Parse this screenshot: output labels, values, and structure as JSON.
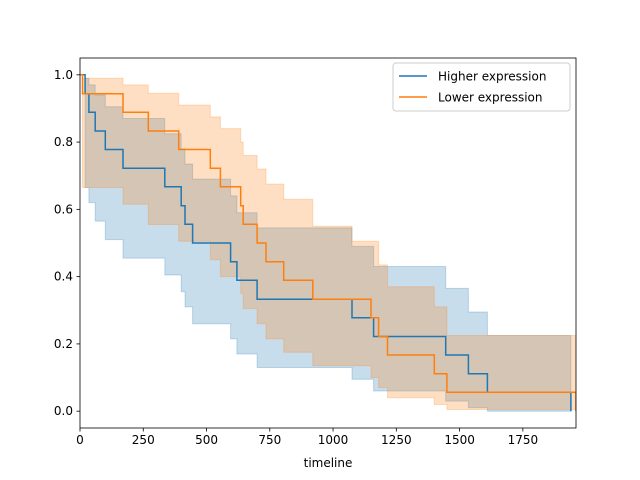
{
  "chart_data": {
    "type": "line",
    "subtype": "kaplan-meier-step",
    "title": "",
    "xlabel": "timeline",
    "ylabel": "",
    "xlim": [
      0,
      1960
    ],
    "ylim": [
      -0.05,
      1.05
    ],
    "xticks": [
      0,
      250,
      500,
      750,
      1000,
      1250,
      1500,
      1750
    ],
    "yticks": [
      0.0,
      0.2,
      0.4,
      0.6,
      0.8,
      1.0
    ],
    "xtick_labels": [
      "0",
      "250",
      "500",
      "750",
      "1000",
      "1250",
      "1500",
      "1750"
    ],
    "ytick_labels": [
      "0.0",
      "0.2",
      "0.4",
      "0.6",
      "0.8",
      "1.0"
    ],
    "legend_position": "top-right",
    "grid": false,
    "series": [
      {
        "name": "Higher expression",
        "color": "#1f77b4",
        "band_color": "#1f77b4",
        "steps": [
          [
            0,
            1.0
          ],
          [
            20,
            0.944
          ],
          [
            35,
            0.889
          ],
          [
            60,
            0.833
          ],
          [
            100,
            0.778
          ],
          [
            170,
            0.722
          ],
          [
            335,
            0.667
          ],
          [
            400,
            0.611
          ],
          [
            415,
            0.556
          ],
          [
            445,
            0.5
          ],
          [
            595,
            0.444
          ],
          [
            620,
            0.389
          ],
          [
            700,
            0.333
          ],
          [
            1075,
            0.278
          ],
          [
            1160,
            0.222
          ],
          [
            1445,
            0.167
          ],
          [
            1535,
            0.111
          ],
          [
            1610,
            0.056
          ],
          [
            1940,
            0.0
          ]
        ],
        "upper": [
          [
            0,
            1.0
          ],
          [
            20,
            0.99
          ],
          [
            35,
            0.97
          ],
          [
            60,
            0.94
          ],
          [
            100,
            0.905
          ],
          [
            170,
            0.87
          ],
          [
            335,
            0.825
          ],
          [
            400,
            0.78
          ],
          [
            415,
            0.735
          ],
          [
            445,
            0.69
          ],
          [
            595,
            0.64
          ],
          [
            620,
            0.59
          ],
          [
            700,
            0.545
          ],
          [
            1075,
            0.49
          ],
          [
            1160,
            0.43
          ],
          [
            1445,
            0.365
          ],
          [
            1535,
            0.295
          ],
          [
            1610,
            0.225
          ],
          [
            1940,
            0.225
          ]
        ],
        "lower": [
          [
            0,
            1.0
          ],
          [
            20,
            0.665
          ],
          [
            35,
            0.62
          ],
          [
            60,
            0.565
          ],
          [
            100,
            0.51
          ],
          [
            170,
            0.455
          ],
          [
            335,
            0.405
          ],
          [
            400,
            0.355
          ],
          [
            415,
            0.31
          ],
          [
            445,
            0.26
          ],
          [
            595,
            0.215
          ],
          [
            620,
            0.17
          ],
          [
            700,
            0.13
          ],
          [
            1075,
            0.095
          ],
          [
            1160,
            0.06
          ],
          [
            1445,
            0.03
          ],
          [
            1535,
            0.01
          ],
          [
            1610,
            0.0
          ],
          [
            1940,
            0.0
          ]
        ]
      },
      {
        "name": "Lower expression",
        "color": "#ff7f0e",
        "band_color": "#ff7f0e",
        "steps": [
          [
            0,
            1.0
          ],
          [
            10,
            0.944
          ],
          [
            170,
            0.889
          ],
          [
            270,
            0.833
          ],
          [
            390,
            0.778
          ],
          [
            515,
            0.722
          ],
          [
            555,
            0.667
          ],
          [
            635,
            0.611
          ],
          [
            645,
            0.556
          ],
          [
            700,
            0.5
          ],
          [
            735,
            0.444
          ],
          [
            805,
            0.389
          ],
          [
            920,
            0.333
          ],
          [
            1150,
            0.278
          ],
          [
            1180,
            0.222
          ],
          [
            1215,
            0.167
          ],
          [
            1400,
            0.111
          ],
          [
            1450,
            0.056
          ],
          [
            1960,
            0.0
          ]
        ],
        "upper": [
          [
            0,
            1.0
          ],
          [
            10,
            0.99
          ],
          [
            170,
            0.97
          ],
          [
            270,
            0.945
          ],
          [
            390,
            0.91
          ],
          [
            515,
            0.875
          ],
          [
            555,
            0.84
          ],
          [
            635,
            0.8
          ],
          [
            645,
            0.76
          ],
          [
            700,
            0.72
          ],
          [
            735,
            0.675
          ],
          [
            805,
            0.63
          ],
          [
            920,
            0.55
          ],
          [
            1075,
            0.505
          ],
          [
            1150,
            0.505
          ],
          [
            1180,
            0.435
          ],
          [
            1215,
            0.37
          ],
          [
            1400,
            0.31
          ],
          [
            1450,
            0.225
          ],
          [
            1960,
            0.225
          ]
        ],
        "lower": [
          [
            0,
            1.0
          ],
          [
            10,
            0.665
          ],
          [
            170,
            0.615
          ],
          [
            270,
            0.555
          ],
          [
            390,
            0.505
          ],
          [
            515,
            0.45
          ],
          [
            555,
            0.4
          ],
          [
            635,
            0.35
          ],
          [
            645,
            0.305
          ],
          [
            700,
            0.26
          ],
          [
            735,
            0.215
          ],
          [
            805,
            0.175
          ],
          [
            920,
            0.135
          ],
          [
            1150,
            0.1
          ],
          [
            1180,
            0.07
          ],
          [
            1215,
            0.04
          ],
          [
            1400,
            0.02
          ],
          [
            1450,
            0.005
          ],
          [
            1960,
            0.0
          ]
        ]
      }
    ]
  }
}
